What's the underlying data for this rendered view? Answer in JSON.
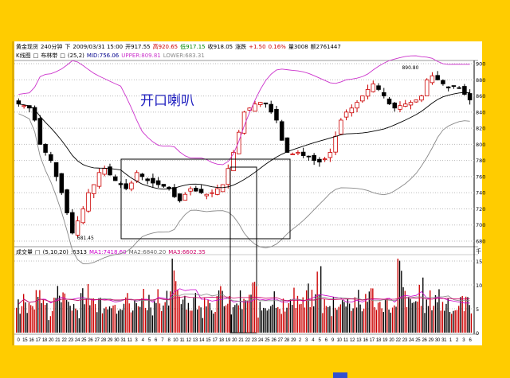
{
  "header": {
    "symbol": "黄金现货",
    "period": "240分钟",
    "dir": "下",
    "datetime": "2009/03/31 15:00",
    "open": "开917.55",
    "high": "高920.65",
    "low": "低917.15",
    "close": "收918.05",
    "change_label": "涨跌",
    "change": "+1.50",
    "pct": "0.16%",
    "volume": "量3008",
    "amount": "额2761447"
  },
  "indicator": {
    "kline": "K线图",
    "boll": "布林带",
    "params": "(25,2)",
    "mid": "MID:756.06",
    "upper": "UPPER:809.81",
    "lower": "LOWER:683.31"
  },
  "volume_header": {
    "name": "成交量",
    "params": "(5,10,20)",
    "value": ":6313",
    "ma1": "MA1:7418.60",
    "ma2": "MA2:6840.20",
    "ma3": "MA3:6602.35"
  },
  "annotation": "开口喇叭",
  "colors": {
    "background": "#ffcc00",
    "upper": "#cc33cc",
    "mid": "#000000",
    "lower": "#888888",
    "up_candle": "#cc0000",
    "down_candle": "#000000",
    "annotation": "#2020c0"
  },
  "chart_data": [
    {
      "type": "candlestick",
      "title": "",
      "y_ticks": [
        900,
        880,
        860,
        840,
        820,
        800,
        780,
        760,
        740,
        720,
        700,
        680
      ],
      "ylim": [
        678,
        902
      ],
      "closes": [
        850,
        848,
        845,
        830,
        800,
        790,
        780,
        760,
        740,
        715,
        690,
        705,
        720,
        740,
        750,
        765,
        770,
        762,
        755,
        750,
        745,
        752,
        765,
        760,
        755,
        752,
        750,
        748,
        745,
        735,
        730,
        738,
        745,
        742,
        740,
        738,
        740,
        745,
        750,
        770,
        790,
        815,
        840,
        845,
        850,
        852,
        850,
        840,
        830,
        805,
        790,
        788,
        790,
        786,
        785,
        780,
        778,
        782,
        790,
        810,
        830,
        840,
        845,
        852,
        860,
        868,
        875,
        868,
        860,
        850,
        845,
        848,
        850,
        852,
        855,
        860,
        880,
        885,
        880,
        875,
        870,
        872,
        870,
        862,
        855
      ],
      "low_label": "681.45",
      "high_label": "890.80",
      "grid": true
    },
    {
      "type": "bar",
      "title": "",
      "y_unit": "千",
      "y_ticks": [
        15,
        10,
        5,
        0
      ],
      "ylim": [
        0,
        16
      ],
      "values": [
        6,
        8,
        5,
        7,
        9,
        6,
        4,
        8,
        10,
        7,
        6,
        5,
        9,
        8,
        6,
        7,
        5,
        8,
        6,
        7,
        9,
        5,
        6,
        8,
        7,
        6,
        10,
        5,
        7,
        15,
        9,
        8,
        6,
        7,
        5,
        9,
        6,
        7,
        8,
        6,
        5,
        7,
        6,
        8,
        9,
        5,
        6,
        7,
        8,
        6,
        5,
        9,
        7,
        6,
        8,
        7,
        12,
        6,
        5,
        7,
        6,
        8,
        6,
        7,
        5,
        9,
        8,
        6,
        7,
        6,
        5,
        13,
        8,
        6,
        7,
        9,
        6,
        7,
        8,
        6,
        7,
        5,
        6,
        7,
        6
      ]
    }
  ],
  "x_labels": [
    "0",
    "15",
    "16",
    "17",
    "18",
    "20",
    "21",
    "22",
    "23",
    "24",
    "25",
    "26",
    "27",
    "28",
    "29",
    "30",
    "31",
    "11",
    "3",
    "4",
    "5",
    "6",
    "7",
    "8",
    "10",
    "11",
    "12",
    "13",
    "14",
    "15",
    "17",
    "18",
    "19",
    "20",
    "21",
    "22",
    "23",
    "24",
    "25",
    "26",
    "27",
    "28",
    "29",
    "2",
    "3",
    "4",
    "5",
    "6",
    "9",
    "10",
    "11",
    "12",
    "13",
    "16",
    "17",
    "18",
    "19",
    "20",
    "22",
    "23",
    "24",
    "25",
    "26",
    "29",
    "30",
    "31",
    "1",
    "2",
    "3",
    "6"
  ]
}
